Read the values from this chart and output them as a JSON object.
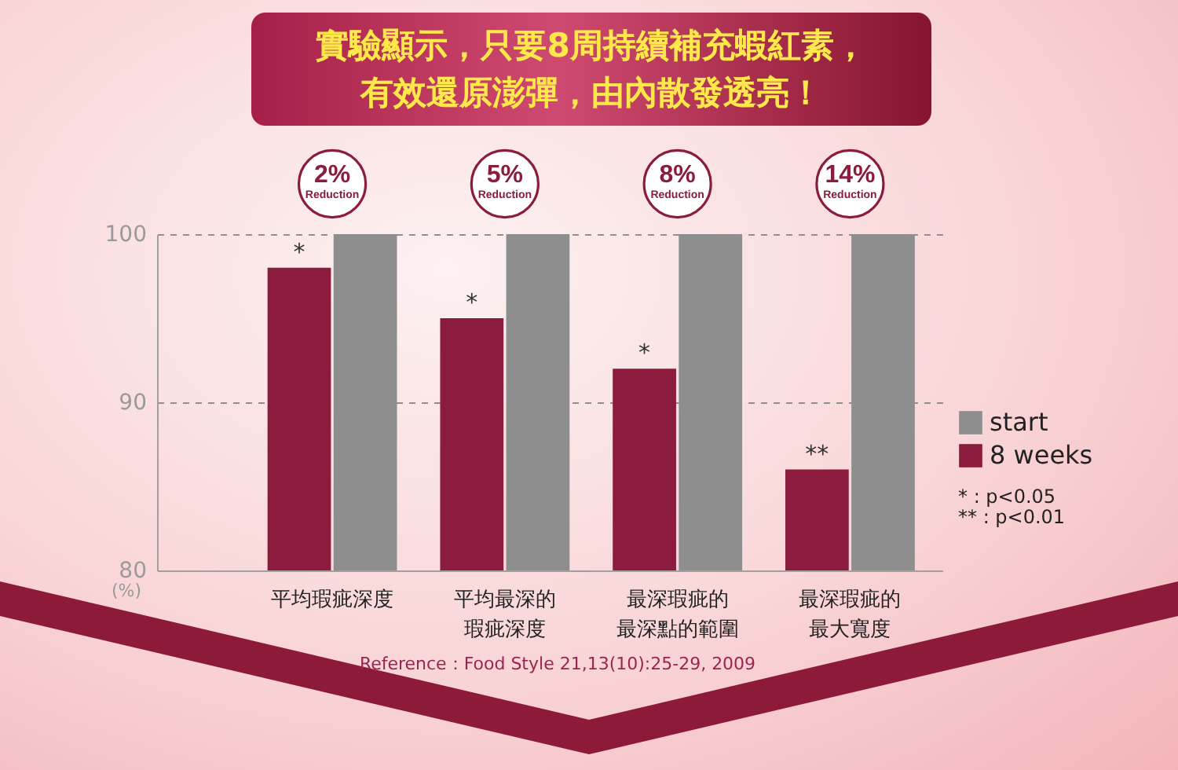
{
  "chart_data": {
    "type": "bar",
    "title": "實驗顯示，只要8周持續補充蝦紅素，有效還原澎彈，由內散發透亮！",
    "ylabel": "(%)",
    "categories": [
      "平均瑕疵深度",
      "平均最深的瑕疵深度",
      "最深瑕疵的最深點的範圍",
      "最深瑕疵的最大寬度"
    ],
    "series": [
      {
        "name": "start",
        "color": "#8e8e8e",
        "values": [
          100,
          100,
          100,
          100
        ]
      },
      {
        "name": "8 weeks",
        "color": "#8b1c3d",
        "values": [
          98,
          95,
          92,
          86
        ]
      }
    ],
    "ylim": [
      80,
      100
    ],
    "yticks": [
      80,
      90,
      100
    ],
    "grid": "y",
    "legend": "right",
    "annotations": [
      "2%\nReduction",
      "5%\nReduction",
      "8%\nReduction",
      "14%\nReduction",
      {
        "text": "*",
        "x": "平均瑕疵深度",
        "y": 98
      },
      {
        "text": "*",
        "x": "平均最深的瑕疵深度",
        "y": 95
      },
      {
        "text": "*",
        "x": "最深瑕疵的最深點的範圍",
        "y": 92
      },
      {
        "text": "**",
        "x": "最深瑕疵的最大寬度",
        "y": 86
      },
      "* : p<0.05",
      "** : p<0.01",
      "Reference：Food Style 21,13(10):25-29, 2009"
    ]
  }
}
